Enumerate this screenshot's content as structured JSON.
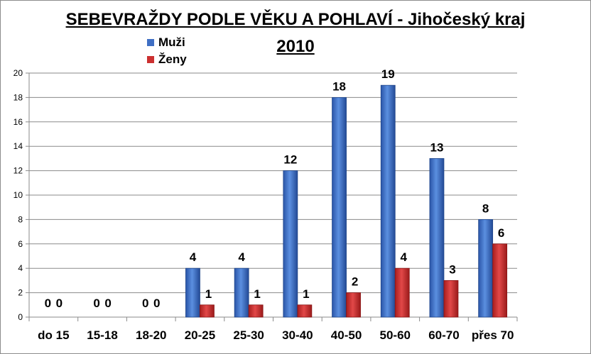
{
  "chart_data": {
    "type": "bar",
    "title": "SEBEVRAŽDY PODLE VĚKU A POHLAVÍ - Jihočeský kraj",
    "subtitle": "2010",
    "categories": [
      "do 15",
      "15-18",
      "18-20",
      "20-25",
      "25-30",
      "30-40",
      "40-50",
      "50-60",
      "60-70",
      "přes 70"
    ],
    "series": [
      {
        "name": "Muži",
        "values": [
          0,
          0,
          0,
          4,
          4,
          12,
          18,
          19,
          13,
          8
        ],
        "color": "#3f6fc4"
      },
      {
        "name": "Ženy",
        "values": [
          0,
          0,
          0,
          1,
          1,
          1,
          2,
          4,
          3,
          6
        ],
        "color": "#cc3030"
      }
    ],
    "ylim": [
      0,
      20
    ],
    "yticks": [
      0,
      2,
      4,
      6,
      8,
      10,
      12,
      14,
      16,
      18,
      20
    ],
    "grid": true,
    "legend": "top-left",
    "xlabel": "",
    "ylabel": ""
  }
}
